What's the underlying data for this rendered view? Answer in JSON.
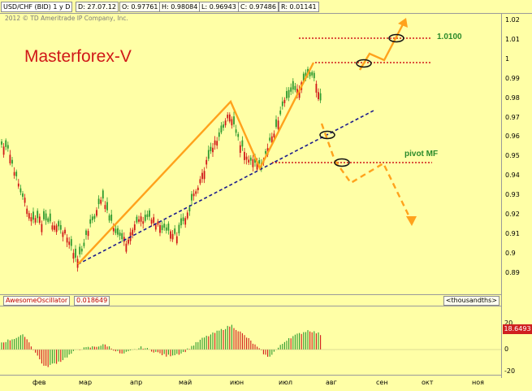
{
  "header": {
    "symbol": "USD/CHF (BID) 1 y D",
    "date": "D: 27.07.12",
    "open": "O: 0.97761",
    "high": "H: 0.98084",
    "low": "L: 0.96943",
    "close": "C: 0.97486",
    "range": "R: 0.01141"
  },
  "copyright": "2012 © TD Ameritrade IP Company, Inc.",
  "brand": "Masterforex-V",
  "annotations": {
    "target": "1.0100",
    "pivot": "pivot MF"
  },
  "oscillator": {
    "name": "AwesomeOscillator",
    "value": "0.018649",
    "units": "<thousandths>",
    "last": "18.6493",
    "ticks": [
      "20",
      "0",
      "-20"
    ]
  },
  "price_axis": [
    "1.02",
    "1.01",
    "1",
    "0.99",
    "0.98",
    "0.97",
    "0.96",
    "0.95",
    "0.94",
    "0.93",
    "0.92",
    "0.91",
    "0.9",
    "0.89"
  ],
  "months": [
    "фев",
    "мар",
    "апр",
    "май",
    "июн",
    "июл",
    "авг",
    "сен",
    "окт",
    "ноя"
  ],
  "colors": {
    "background": "#ffffa6",
    "up": "#2e9a2e",
    "down": "#d01818",
    "orange": "#ffa21c",
    "trend": "#1a1a8c",
    "brand": "#d01818"
  }
}
